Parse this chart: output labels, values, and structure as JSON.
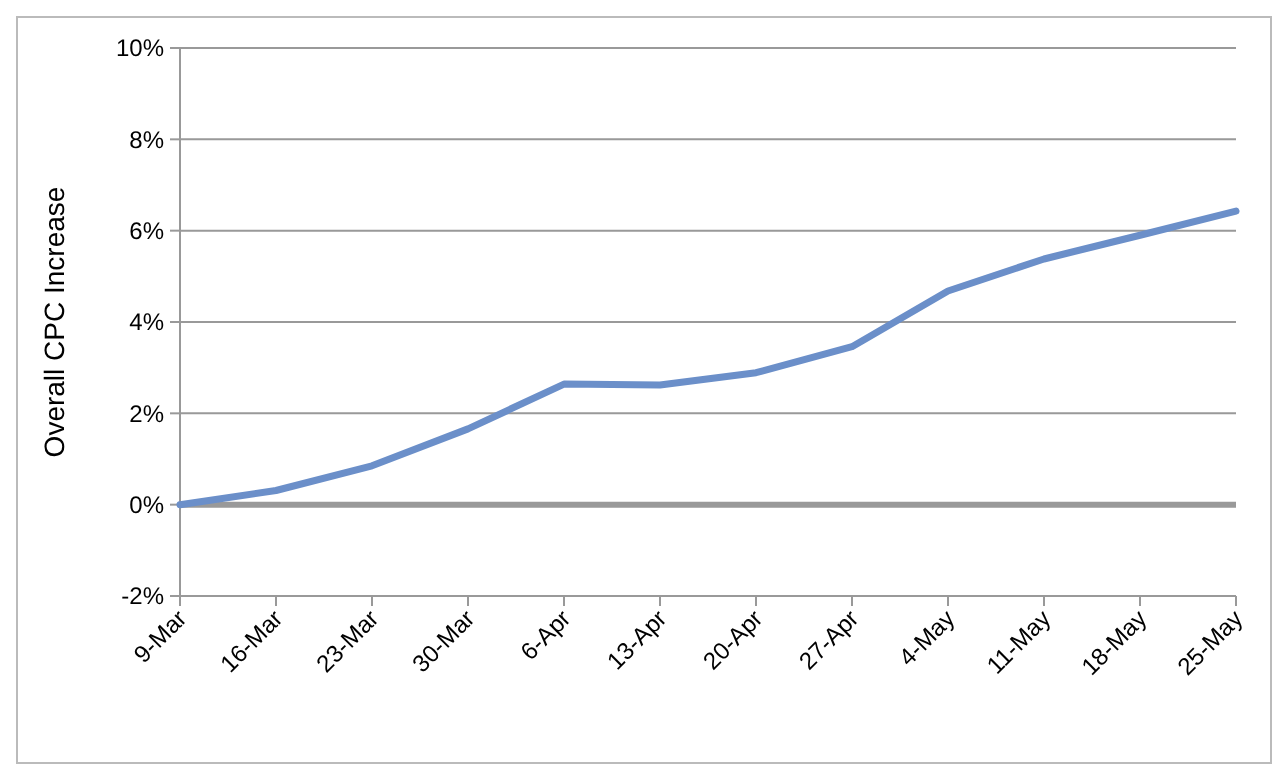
{
  "chart_data": {
    "type": "line",
    "ylabel": "Overall CPC Increase",
    "categories": [
      "9-Mar",
      "16-Mar",
      "23-Mar",
      "30-Mar",
      "6-Apr",
      "13-Apr",
      "20-Apr",
      "27-Apr",
      "4-May",
      "11-May",
      "18-May",
      "25-May"
    ],
    "series": [
      {
        "color": "#6b8fc9",
        "values": [
          0,
          0.31,
          0.85,
          1.66,
          2.64,
          2.62,
          2.89,
          3.46,
          4.68,
          5.38,
          5.9,
          6.43
        ]
      }
    ],
    "ylim": [
      -2,
      10
    ],
    "yticks": [
      {
        "value": -2,
        "label": "-2%"
      },
      {
        "value": 0,
        "label": "0%"
      },
      {
        "value": 2,
        "label": "2%"
      },
      {
        "value": 4,
        "label": "4%"
      },
      {
        "value": 6,
        "label": "6%"
      },
      {
        "value": 8,
        "label": "8%"
      },
      {
        "value": 10,
        "label": "10%"
      }
    ],
    "grid": "y",
    "marker": "none",
    "line_style": "solid"
  }
}
